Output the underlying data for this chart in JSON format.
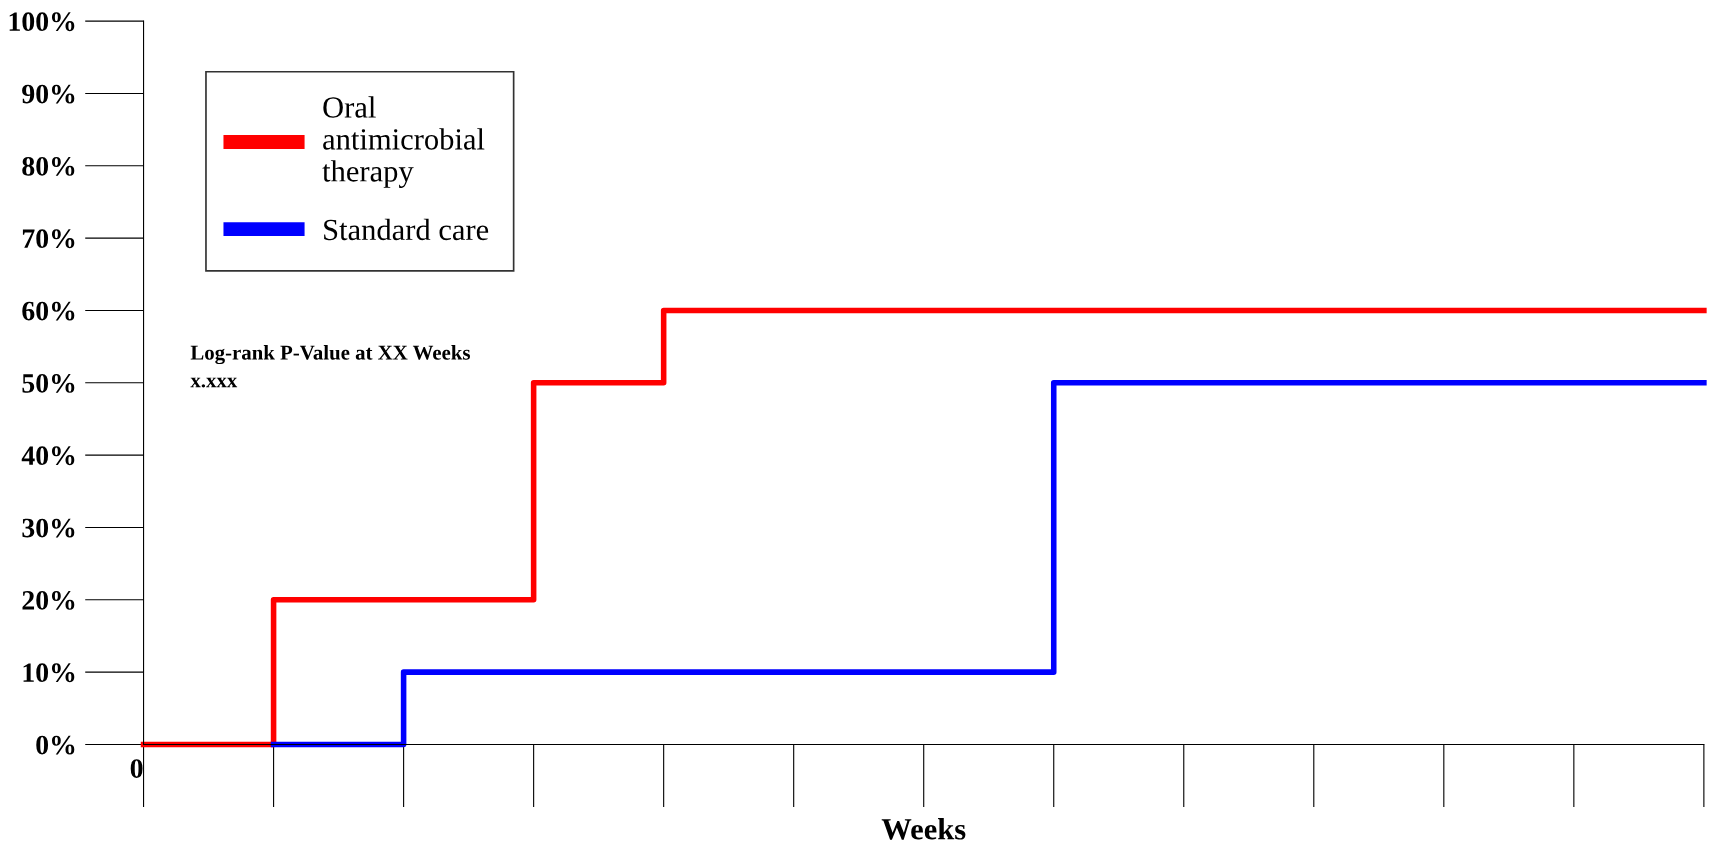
{
  "chart_data": {
    "type": "step",
    "xlabel": "Weeks",
    "categories": [
      "0",
      null,
      null,
      null,
      null,
      null,
      null,
      null,
      null,
      null,
      null,
      null,
      null
    ],
    "ylim": [
      0,
      100
    ],
    "yticks": [
      {
        "value": 0,
        "label": "0%"
      },
      {
        "value": 10,
        "label": "10%"
      },
      {
        "value": 20,
        "label": "20%"
      },
      {
        "value": 30,
        "label": "30%"
      },
      {
        "value": 40,
        "label": "40%"
      },
      {
        "value": 50,
        "label": "50%"
      },
      {
        "value": 60,
        "label": "60%"
      },
      {
        "value": 70,
        "label": "70%"
      },
      {
        "value": 80,
        "label": "80%"
      },
      {
        "value": 90,
        "label": "90%"
      },
      {
        "value": 100,
        "label": "100%"
      }
    ],
    "series": [
      {
        "name": "Oral\nantimicrobial\ntherapy",
        "color": "#ff0000",
        "values": [
          0,
          20,
          20,
          50,
          60,
          60,
          60,
          60,
          60,
          60,
          60,
          60,
          60
        ]
      },
      {
        "name": "Standard care",
        "color": "#0000ff",
        "values": [
          null,
          0,
          10,
          10,
          10,
          10,
          10,
          50,
          50,
          50,
          50,
          50,
          50
        ]
      }
    ],
    "annotations": [
      "Log-rank P-Value at XX Weeks\nx.xxx"
    ],
    "legend": "top left",
    "grid": false,
    "line_style": "solid"
  }
}
